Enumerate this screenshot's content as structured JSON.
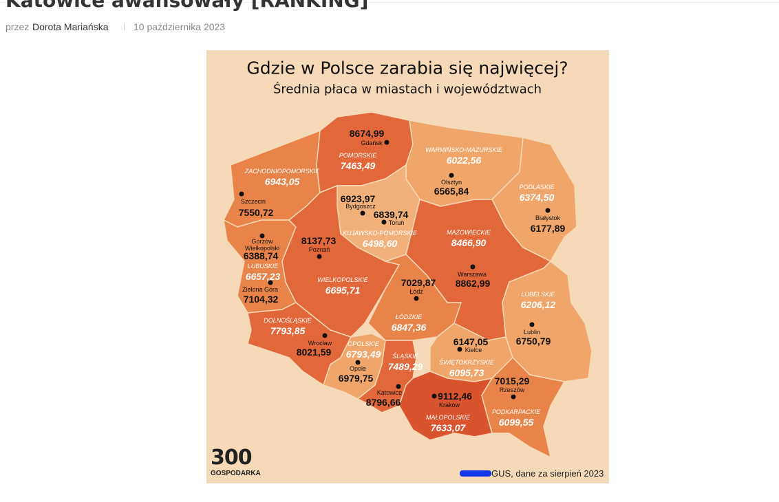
{
  "article": {
    "title": "Katowice awansowały [RANKING]",
    "by": "przez",
    "author": "Dorota Mariańska",
    "date": "10 października 2023"
  },
  "infographic": {
    "title": "Gdzie w Polsce zarabia się najwięcej?",
    "subtitle": "Średnia płaca w miastach i województwach",
    "regions": [
      {
        "name": "ZACHODNIOPOMORSKIE",
        "value": "6943,05",
        "color": "#e8834a"
      },
      {
        "name": "POMORSKIE",
        "value": "7463,49",
        "color": "#e2683c"
      },
      {
        "name": "WARMIŃSKO-MAZURSKIE",
        "value": "6022,56",
        "color": "#f0a66a"
      },
      {
        "name": "PODLASKIE",
        "value": "6374,50",
        "color": "#f0a66a"
      },
      {
        "name": "KUJAWSKO-POMORSKIE",
        "value": "6498,60",
        "color": "#f2b07a"
      },
      {
        "name": "MAZOWIECKIE",
        "value": "8466,90",
        "color": "#e2683c"
      },
      {
        "name": "LUBUSKIE",
        "value": "6657,23",
        "color": "#e8834a"
      },
      {
        "name": "WIELKOPOLSKIE",
        "value": "6695,71",
        "color": "#e2683c"
      },
      {
        "name": "ŁÓDZKIE",
        "value": "6847,36",
        "color": "#e8834a"
      },
      {
        "name": "LUBELSKIE",
        "value": "6206,12",
        "color": "#f0a66a"
      },
      {
        "name": "DOLNOŚLĄSKIE",
        "value": "7793,85",
        "color": "#e2683c"
      },
      {
        "name": "OPOLSKIE",
        "value": "6793,49",
        "color": "#f0a66a"
      },
      {
        "name": "ŚLĄSKIE",
        "value": "7489,29",
        "color": "#e2683c"
      },
      {
        "name": "ŚWIĘTOKRZYSKIE",
        "value": "6095,73",
        "color": "#f0a66a"
      },
      {
        "name": "MAŁOPOLSKIE",
        "value": "7633,07",
        "color": "#d9532f"
      },
      {
        "name": "PODKARPACKIE",
        "value": "6099,55",
        "color": "#e8834a"
      }
    ],
    "cities": [
      {
        "name": "Gdańsk",
        "value": "8674,99"
      },
      {
        "name": "Szczecin",
        "value": "7550,72"
      },
      {
        "name": "Bydgoszcz",
        "value": "6923,97"
      },
      {
        "name": "Toruń",
        "value": "6839,74"
      },
      {
        "name": "Olsztyn",
        "value": "6565,84"
      },
      {
        "name": "Białystok",
        "value": "6177,89"
      },
      {
        "name": "Gorzów Wielkopolski",
        "value": "6388,74"
      },
      {
        "name": "Poznań",
        "value": "8137,73"
      },
      {
        "name": "Zielona Góra",
        "value": "7104,32"
      },
      {
        "name": "Wrocław",
        "value": "8021,59"
      },
      {
        "name": "Łódź",
        "value": "7029,87"
      },
      {
        "name": "Warszawa",
        "value": "8862,99"
      },
      {
        "name": "Lublin",
        "value": "6750,79"
      },
      {
        "name": "Opole",
        "value": "6979,75"
      },
      {
        "name": "Kielce",
        "value": "6147,05"
      },
      {
        "name": "Katowice",
        "value": "8796,66"
      },
      {
        "name": "Kraków",
        "value": "9112,46"
      },
      {
        "name": "Rzeszów",
        "value": "7015,29"
      }
    ],
    "logo": {
      "mark": "300",
      "name": "GOSPODARKA"
    },
    "source": "GUS, dane za sierpień 2023"
  }
}
